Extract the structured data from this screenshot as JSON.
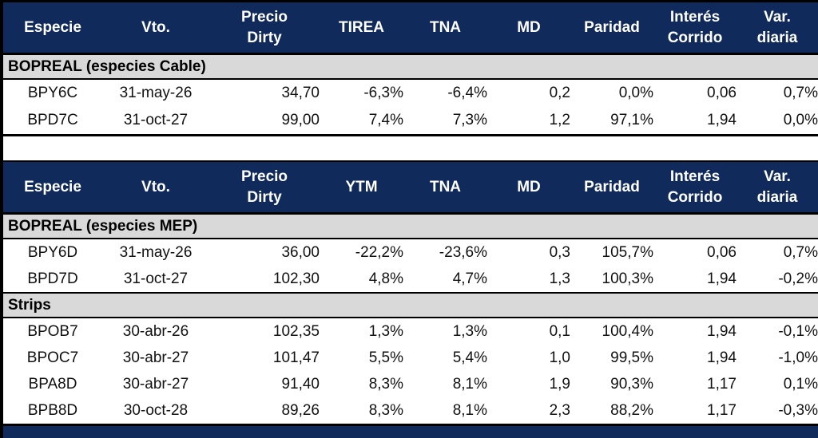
{
  "colors": {
    "header_bg": "#102a5c",
    "header_text": "#ffffff",
    "section_bg": "#d9d9d9",
    "positive_bg": "#c6efce",
    "positive_text": "#1e7d32",
    "negative_bg": "#ffc7ce",
    "negative_text": "#c00000",
    "border": "#000000"
  },
  "chart_data": [
    {
      "type": "table",
      "columns": [
        "Especie",
        "Vto.",
        "Precio\nDirty",
        "TIREA",
        "TNA",
        "MD",
        "Paridad",
        "Interés\nCorrido",
        "Var.\ndiaria"
      ],
      "sections": [
        {
          "label": "BOPREAL (especies Cable)",
          "rows": [
            [
              "BPY6C",
              "31-may-26",
              "34,70",
              "-6,3%",
              "-6,4%",
              "0,2",
              "0,0%",
              "0,06",
              "0,7%"
            ],
            [
              "BPD7C",
              "31-oct-27",
              "99,00",
              "7,4%",
              "7,3%",
              "1,2",
              "97,1%",
              "1,94",
              "0,0%"
            ]
          ]
        }
      ]
    },
    {
      "type": "table",
      "columns": [
        "Especie",
        "Vto.",
        "Precio\nDirty",
        "YTM",
        "TNA",
        "MD",
        "Paridad",
        "Interés\nCorrido",
        "Var.\ndiaria"
      ],
      "sections": [
        {
          "label": "BOPREAL (especies MEP)",
          "rows": [
            [
              "BPY6D",
              "31-may-26",
              "36,00",
              "-22,2%",
              "-23,6%",
              "0,3",
              "105,7%",
              "0,06",
              "0,7%"
            ],
            [
              "BPD7D",
              "31-oct-27",
              "102,30",
              "4,8%",
              "4,7%",
              "1,3",
              "100,3%",
              "1,94",
              "-0,2%"
            ]
          ]
        },
        {
          "label": "Strips",
          "rows": [
            [
              "BPOB7",
              "30-abr-26",
              "102,35",
              "1,3%",
              "1,3%",
              "0,1",
              "100,4%",
              "1,94",
              "-0,1%"
            ],
            [
              "BPOC7",
              "30-abr-27",
              "101,47",
              "5,5%",
              "5,4%",
              "1,0",
              "99,5%",
              "1,94",
              "-1,0%"
            ],
            [
              "BPA8D",
              "30-abr-27",
              "91,40",
              "8,3%",
              "8,1%",
              "1,9",
              "90,3%",
              "1,17",
              "0,1%"
            ],
            [
              "BPB8D",
              "30-oct-28",
              "89,26",
              "8,3%",
              "8,1%",
              "2,3",
              "88,2%",
              "1,17",
              "-0,3%"
            ]
          ]
        }
      ]
    }
  ]
}
